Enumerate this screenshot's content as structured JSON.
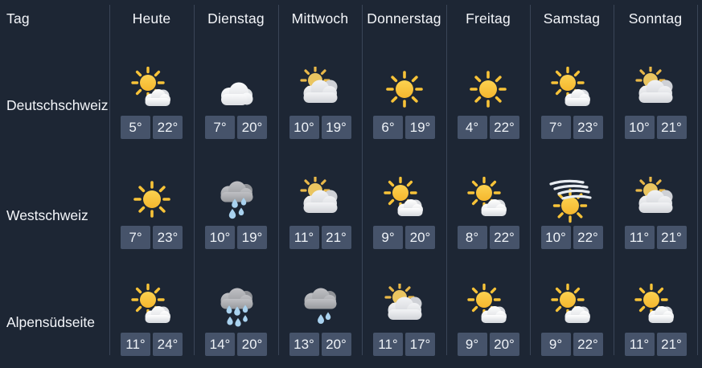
{
  "table": {
    "corner_label": "Tag",
    "columns": [
      "Heute",
      "Dienstag",
      "Mittwoch",
      "Donnerstag",
      "Freitag",
      "Samstag",
      "Sonntag"
    ],
    "rows": [
      {
        "region": "Deutschschweiz",
        "cells": [
          {
            "icon": "partly-sunny",
            "min": "5°",
            "max": "22°"
          },
          {
            "icon": "cloudy",
            "min": "7°",
            "max": "20°"
          },
          {
            "icon": "partly-cloudy",
            "min": "10°",
            "max": "19°"
          },
          {
            "icon": "sun",
            "min": "6°",
            "max": "19°"
          },
          {
            "icon": "sun",
            "min": "4°",
            "max": "22°"
          },
          {
            "icon": "partly-sunny",
            "min": "7°",
            "max": "23°"
          },
          {
            "icon": "partly-cloudy",
            "min": "10°",
            "max": "21°"
          }
        ]
      },
      {
        "region": "Westschweiz",
        "cells": [
          {
            "icon": "sun",
            "min": "7°",
            "max": "23°"
          },
          {
            "icon": "rain",
            "min": "10°",
            "max": "19°"
          },
          {
            "icon": "partly-cloudy",
            "min": "11°",
            "max": "21°"
          },
          {
            "icon": "partly-sunny",
            "min": "9°",
            "max": "20°"
          },
          {
            "icon": "partly-sunny",
            "min": "8°",
            "max": "22°"
          },
          {
            "icon": "fog-sun",
            "min": "10°",
            "max": "22°"
          },
          {
            "icon": "partly-cloudy",
            "min": "11°",
            "max": "21°"
          }
        ]
      },
      {
        "region": "Alpensüdseite",
        "cells": [
          {
            "icon": "partly-sunny",
            "min": "11°",
            "max": "24°"
          },
          {
            "icon": "heavy-rain",
            "min": "14°",
            "max": "20°"
          },
          {
            "icon": "light-rain",
            "min": "13°",
            "max": "20°"
          },
          {
            "icon": "partly-cloudy",
            "min": "11°",
            "max": "17°"
          },
          {
            "icon": "partly-sunny",
            "min": "9°",
            "max": "20°"
          },
          {
            "icon": "partly-sunny",
            "min": "9°",
            "max": "22°"
          },
          {
            "icon": "partly-sunny",
            "min": "11°",
            "max": "21°"
          }
        ]
      }
    ]
  },
  "colors": {
    "background": "#1d2634",
    "divider": "#3a4557",
    "badge_background": "#46536a",
    "text": "#f2f5f9",
    "sun": "#f8c338",
    "raindrop": "#a9d2ef"
  }
}
